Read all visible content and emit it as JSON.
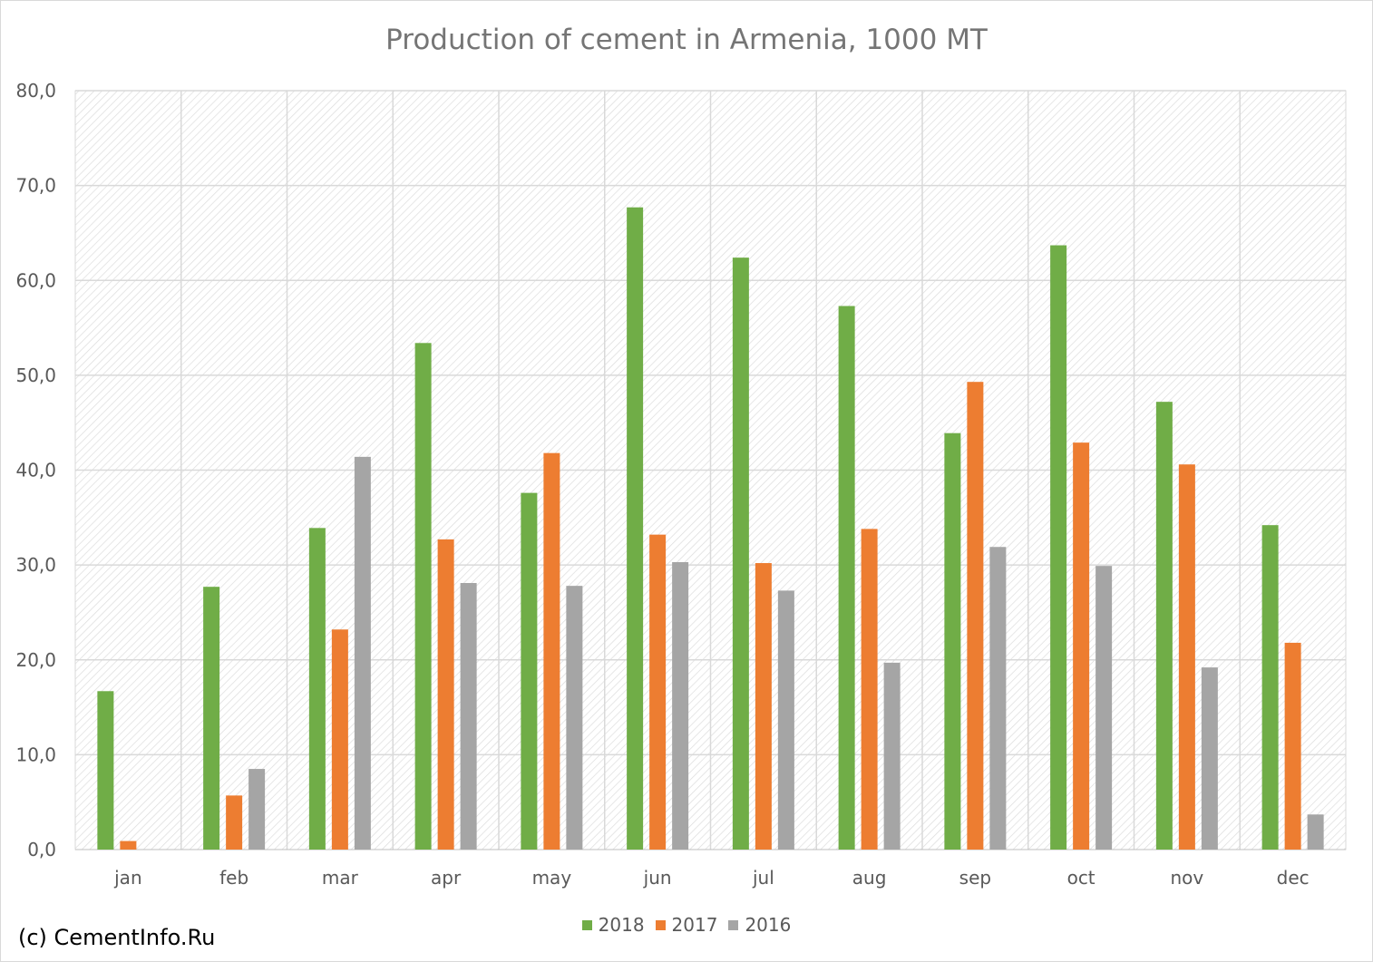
{
  "chart_data": {
    "type": "bar",
    "title": "Production of cement in Armenia, 1000 MT",
    "categories": [
      "jan",
      "feb",
      "mar",
      "apr",
      "may",
      "jun",
      "jul",
      "aug",
      "sep",
      "oct",
      "nov",
      "dec"
    ],
    "series": [
      {
        "name": "2018",
        "color": "#70ad47",
        "values": [
          16.7,
          27.7,
          33.9,
          53.4,
          37.6,
          67.7,
          62.4,
          57.3,
          43.9,
          63.7,
          47.2,
          34.2
        ]
      },
      {
        "name": "2017",
        "color": "#ed7d31",
        "values": [
          0.9,
          5.7,
          23.2,
          32.7,
          41.8,
          33.2,
          30.2,
          33.8,
          49.3,
          42.9,
          40.6,
          21.8
        ]
      },
      {
        "name": "2016",
        "color": "#a5a5a5",
        "values": [
          0,
          8.5,
          41.4,
          28.1,
          27.8,
          30.3,
          27.3,
          19.7,
          31.9,
          29.9,
          19.2,
          3.7
        ]
      }
    ],
    "ylim": [
      0,
      80
    ],
    "yticks": [
      "0,0",
      "10,0",
      "20,0",
      "30,0",
      "40,0",
      "50,0",
      "60,0",
      "70,0",
      "80,0"
    ],
    "ytick_values": [
      0,
      10,
      20,
      30,
      40,
      50,
      60,
      70,
      80
    ],
    "grid": true,
    "legend_position": "bottom"
  },
  "footer": {
    "copyright": "(c) CementInfo.Ru"
  }
}
